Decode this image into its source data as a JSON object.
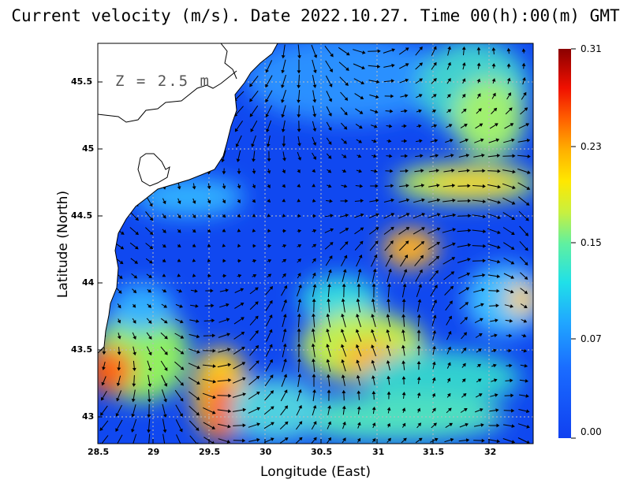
{
  "title": "Current velocity (m/s). Date 2022.10.27. Time 00(h):00(m) GMT",
  "depth_label": "Z = 2.5 m",
  "xlabel": "Longitude (East)",
  "ylabel": "Latitude (North)",
  "x_ticks": [
    "28.5",
    "29",
    "29.5",
    "30",
    "30.5",
    "31",
    "31.5",
    "32"
  ],
  "y_ticks": [
    "45.5",
    "45",
    "44.5",
    "44",
    "43.5",
    "43"
  ],
  "colorbar": {
    "labels": [
      "0.31",
      "0.23",
      "0.15",
      "0.07",
      "0.00"
    ],
    "colors": [
      "#8b0000",
      "#ff2000",
      "#ff8000",
      "#ffd000",
      "#a0f060",
      "#20e0e0",
      "#20a0ff",
      "#1050f0"
    ]
  },
  "map_data": {
    "type": "vector-field",
    "lon_range": [
      28.5,
      32.4
    ],
    "lat_range": [
      42.8,
      45.8
    ],
    "value_range": [
      0.0,
      0.31
    ],
    "grid_lines": true,
    "features": [
      "Black Sea western coastline",
      "Danube delta",
      "current speed shading",
      "velocity arrows"
    ]
  }
}
